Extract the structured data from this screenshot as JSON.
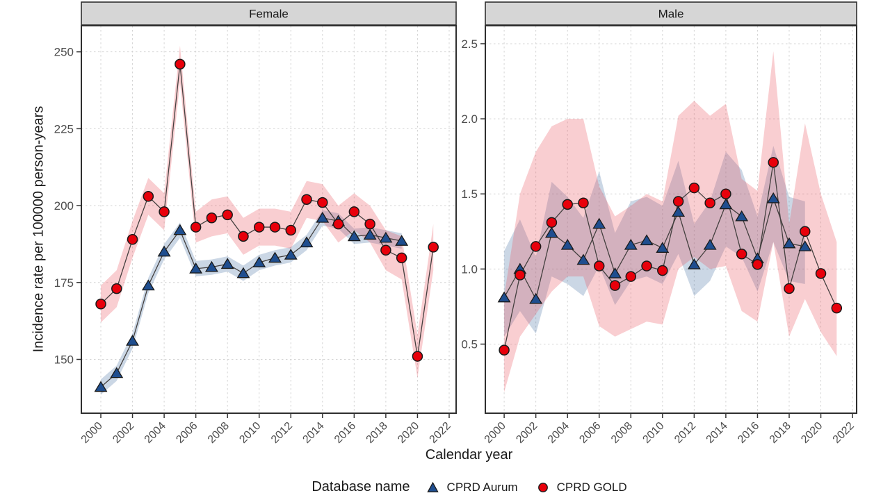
{
  "figure": {
    "x_axis_title": "Calendar year",
    "y_axis_title": "Incidence rate per 100000 person-years",
    "legend": {
      "title": "Database name",
      "items": [
        {
          "label": "CPRD Aurum",
          "marker": "triangle",
          "color": "#1f4e8f"
        },
        {
          "label": "CPRD GOLD",
          "marker": "circle",
          "color": "#e8000b"
        }
      ]
    }
  },
  "styles": {
    "strip_fill": "#d6d6d6",
    "strip_border": "#2e2e2e",
    "strip_text_color": "#1a1a1a",
    "panel_border": "#2e2e2e",
    "panel_background": "#ffffff",
    "grid_color": "#d4d4d4",
    "tick_color": "#333333",
    "tick_label_color": "#4d4d4d",
    "line_color": "#44403f",
    "marker_stroke": "#1a1a1a",
    "aurum_ribbon": "rgba(70,110,160,0.28)",
    "gold_ribbon": "rgba(232,80,90,0.28)"
  },
  "chart_data": [
    {
      "type": "line",
      "facet": "Female",
      "title": "Female",
      "xlabel": "Calendar year",
      "ylabel": "Incidence rate per 100000 person-years",
      "grid": "dashed",
      "legend_position": "bottom",
      "x_domain": [
        1998.77,
        2022.44
      ],
      "y_domain": [
        132.5,
        258.5
      ],
      "x_ticks": [
        2000,
        2002,
        2004,
        2006,
        2008,
        2010,
        2012,
        2014,
        2016,
        2018,
        2020,
        2022
      ],
      "y_ticks": [
        {
          "label": "150",
          "value": 150
        },
        {
          "label": "175",
          "value": 175
        },
        {
          "label": "200",
          "value": 200
        },
        {
          "label": "225",
          "value": 225
        },
        {
          "label": "250",
          "value": 250
        }
      ],
      "series": [
        {
          "name": "CPRD Aurum",
          "marker": "triangle",
          "color": "#1f4e8f",
          "years": [
            2000,
            2001,
            2002,
            2003,
            2004,
            2005,
            2006,
            2007,
            2008,
            2009,
            2010,
            2011,
            2012,
            2013,
            2014,
            2015,
            2016,
            2017,
            2018,
            2019
          ],
          "values": [
            141,
            145.5,
            156,
            174,
            185,
            192,
            179.5,
            180,
            181,
            178,
            181.5,
            183,
            184,
            188,
            196,
            195,
            190,
            190.5,
            189.5,
            188.5
          ],
          "lo": [
            138.5,
            143,
            153.5,
            171.5,
            182.5,
            189.5,
            177,
            177.5,
            178.5,
            175.5,
            179,
            180.5,
            181.5,
            185.5,
            193.5,
            192.5,
            187.5,
            188,
            187,
            186
          ],
          "hi": [
            143.5,
            148,
            158.5,
            176.5,
            187.5,
            194.5,
            182,
            182.5,
            183.5,
            180.5,
            184,
            185.5,
            186.5,
            190.5,
            198.5,
            197.5,
            192.5,
            193,
            192,
            191
          ]
        },
        {
          "name": "CPRD GOLD",
          "marker": "circle",
          "color": "#e8000b",
          "years": [
            2000,
            2001,
            2002,
            2003,
            2004,
            2005,
            2006,
            2007,
            2008,
            2009,
            2010,
            2011,
            2012,
            2013,
            2014,
            2015,
            2016,
            2017,
            2018,
            2019,
            2020,
            2021
          ],
          "values": [
            168,
            173,
            189,
            203,
            198,
            246,
            193,
            196,
            197,
            190,
            193,
            193,
            192,
            202,
            201,
            194,
            198,
            194,
            185.5,
            183,
            151,
            186.5
          ],
          "lo": [
            162,
            167,
            183,
            197,
            192,
            240,
            188,
            190,
            191,
            184,
            187,
            187,
            186,
            196,
            195,
            188,
            192,
            188,
            179,
            176,
            144,
            179
          ],
          "hi": [
            174,
            179,
            195,
            209,
            204,
            252,
            198,
            202,
            203,
            196,
            199,
            199,
            198,
            208,
            207,
            200,
            204,
            200,
            192,
            190,
            158,
            194
          ]
        }
      ]
    },
    {
      "type": "line",
      "facet": "Male",
      "title": "Male",
      "xlabel": "Calendar year",
      "ylabel": "Incidence rate per 100000 person-years",
      "grid": "dashed",
      "legend_position": "bottom",
      "x_domain": [
        1998.81,
        2022.26
      ],
      "y_domain": [
        0.04,
        2.62
      ],
      "x_ticks": [
        2000,
        2002,
        2004,
        2006,
        2008,
        2010,
        2012,
        2014,
        2016,
        2018,
        2020,
        2022
      ],
      "y_ticks": [
        {
          "label": "0.5",
          "value": 0.5
        },
        {
          "label": "1.0",
          "value": 1.0
        },
        {
          "label": "1.5",
          "value": 1.5
        },
        {
          "label": "2.0",
          "value": 2.0
        },
        {
          "label": "2.5",
          "value": 2.5
        }
      ],
      "series": [
        {
          "name": "CPRD Aurum",
          "marker": "triangle",
          "color": "#1f4e8f",
          "years": [
            2000,
            2001,
            2002,
            2003,
            2004,
            2005,
            2006,
            2007,
            2008,
            2009,
            2010,
            2011,
            2012,
            2013,
            2014,
            2015,
            2016,
            2017,
            2018,
            2019
          ],
          "values": [
            0.81,
            1.0,
            0.8,
            1.24,
            1.16,
            1.06,
            1.3,
            0.97,
            1.16,
            1.19,
            1.14,
            1.38,
            1.03,
            1.16,
            1.43,
            1.35,
            1.07,
            1.47,
            1.17,
            1.15
          ],
          "lo": [
            0.55,
            0.72,
            0.57,
            0.95,
            0.9,
            0.82,
            1.02,
            0.76,
            0.92,
            0.95,
            0.9,
            1.1,
            0.82,
            0.92,
            1.15,
            1.08,
            0.85,
            1.18,
            0.92,
            0.9
          ],
          "hi": [
            1.12,
            1.33,
            1.08,
            1.58,
            1.48,
            1.34,
            1.65,
            1.24,
            1.45,
            1.48,
            1.42,
            1.72,
            1.3,
            1.45,
            1.78,
            1.66,
            1.35,
            1.82,
            1.48,
            1.45
          ]
        },
        {
          "name": "CPRD GOLD",
          "marker": "circle",
          "color": "#e8000b",
          "years": [
            2000,
            2001,
            2002,
            2003,
            2004,
            2005,
            2006,
            2007,
            2008,
            2009,
            2010,
            2011,
            2012,
            2013,
            2014,
            2015,
            2016,
            2017,
            2018,
            2019,
            2020,
            2021
          ],
          "values": [
            0.46,
            0.96,
            1.15,
            1.31,
            1.43,
            1.44,
            1.02,
            0.89,
            0.95,
            1.02,
            0.99,
            1.45,
            1.54,
            1.44,
            1.5,
            1.1,
            1.03,
            1.71,
            0.87,
            1.25,
            0.97,
            0.74
          ],
          "lo": [
            0.18,
            0.55,
            0.7,
            0.85,
            0.95,
            0.95,
            0.62,
            0.55,
            0.6,
            0.65,
            0.63,
            1.0,
            1.08,
            1.0,
            1.02,
            0.72,
            0.65,
            1.18,
            0.55,
            0.8,
            0.58,
            0.42
          ],
          "hi": [
            0.82,
            1.5,
            1.78,
            1.95,
            2.0,
            2.0,
            1.55,
            1.35,
            1.42,
            1.5,
            1.45,
            2.02,
            2.12,
            2.02,
            2.1,
            1.6,
            1.52,
            2.45,
            1.3,
            1.97,
            1.5,
            1.18
          ]
        }
      ]
    }
  ]
}
